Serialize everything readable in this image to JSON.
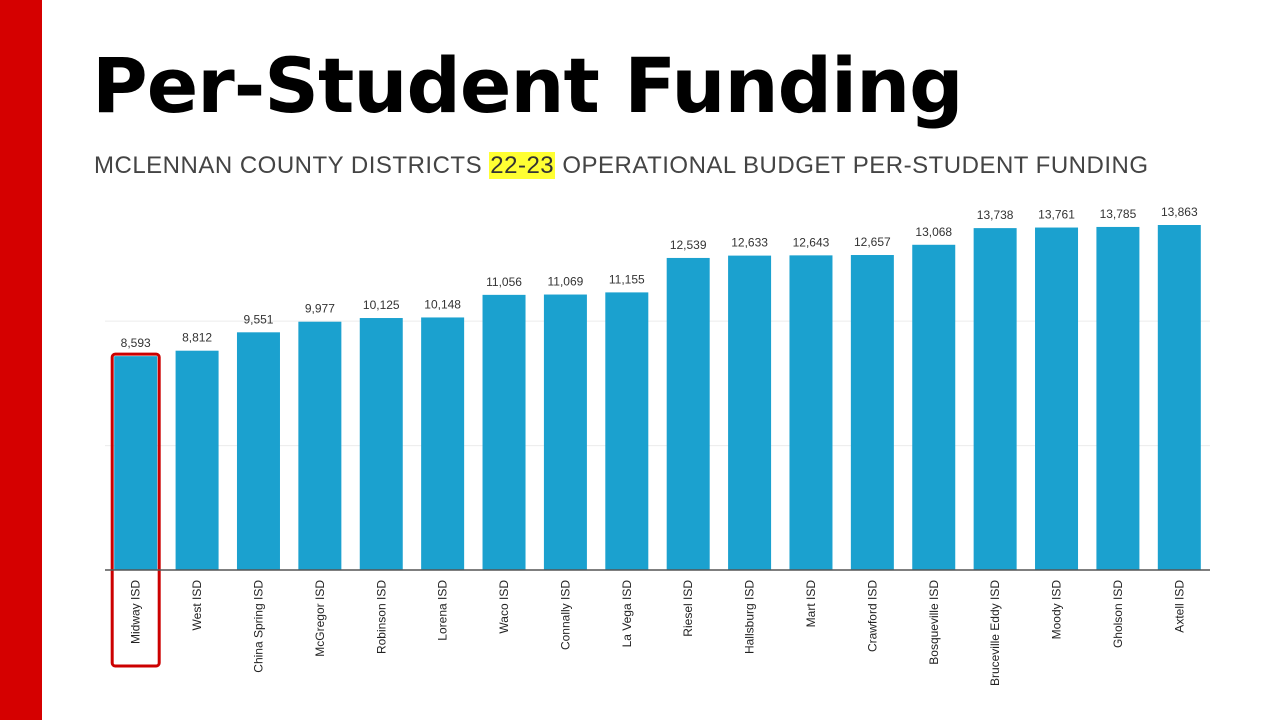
{
  "slide": {
    "title": "Per-Student Funding",
    "subtitle_prefix": "MCLENNAN COUNTY DISTRICTS ",
    "subtitle_highlight": "22-23",
    "subtitle_suffix": " OPERATIONAL BUDGET PER-STUDENT FUNDING",
    "accent_color": "#d50000",
    "highlight_color": "#ffff33"
  },
  "chart_data": {
    "type": "bar",
    "title": "MCLENNAN COUNTY DISTRICTS 22-23 OPERATIONAL BUDGET PER-STUDENT FUNDING",
    "xlabel": "",
    "ylabel": "",
    "ylim": [
      0,
      14000
    ],
    "grid": true,
    "gridlines": [
      5000,
      10000
    ],
    "bar_color": "#1ba1cf",
    "highlight_color": "#cc0000",
    "highlighted_category": "Midway ISD",
    "categories": [
      "Midway ISD",
      "West ISD",
      "China Spring ISD",
      "McGregor ISD",
      "Robinson ISD",
      "Lorena ISD",
      "Waco ISD",
      "Connally ISD",
      "La Vega ISD",
      "Riesel ISD",
      "Hallsburg ISD",
      "Mart ISD",
      "Crawford ISD",
      "Bosqueville ISD",
      "Bruceville Eddy ISD",
      "Moody ISD",
      "Gholson ISD",
      "Axtell ISD"
    ],
    "values": [
      8593,
      8812,
      9551,
      9977,
      10125,
      10148,
      11056,
      11069,
      11155,
      12539,
      12633,
      12643,
      12657,
      13068,
      13738,
      13761,
      13785,
      13863
    ],
    "value_labels": [
      "8,593",
      "8,812",
      "9,551",
      "9,977",
      "10,125",
      "10,148",
      "11,056",
      "11,069",
      "11,155",
      "12,539",
      "12,633",
      "12,643",
      "12,657",
      "13,068",
      "13,738",
      "13,761",
      "13,785",
      "13,863"
    ]
  }
}
